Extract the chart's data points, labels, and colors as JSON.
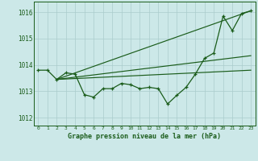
{
  "background_color": "#cce8e8",
  "grid_color": "#aacccc",
  "line_color": "#1a5c1a",
  "title": "Graphe pression niveau de la mer (hPa)",
  "yticks": [
    1012,
    1013,
    1014,
    1015,
    1016
  ],
  "ylim": [
    1011.7,
    1016.4
  ],
  "xlim": [
    -0.5,
    23.5
  ],
  "series1_x": [
    0,
    1,
    2,
    3,
    4,
    5,
    6,
    7,
    8,
    9,
    10,
    11,
    12,
    13,
    14,
    15,
    16,
    17,
    18,
    19,
    20,
    21,
    22,
    23
  ],
  "series1_y": [
    1013.8,
    1013.8,
    1013.45,
    1013.7,
    1013.65,
    1012.87,
    1012.78,
    1013.1,
    1013.1,
    1013.3,
    1013.25,
    1013.1,
    1013.15,
    1013.1,
    1012.52,
    1012.85,
    1013.15,
    1013.65,
    1014.25,
    1014.45,
    1015.85,
    1015.3,
    1015.95,
    1016.05
  ],
  "fan_lines": [
    {
      "x": [
        2,
        23
      ],
      "y": [
        1013.45,
        1016.05
      ]
    },
    {
      "x": [
        2,
        23
      ],
      "y": [
        1013.45,
        1014.35
      ]
    },
    {
      "x": [
        2,
        23
      ],
      "y": [
        1013.45,
        1013.8
      ]
    }
  ]
}
